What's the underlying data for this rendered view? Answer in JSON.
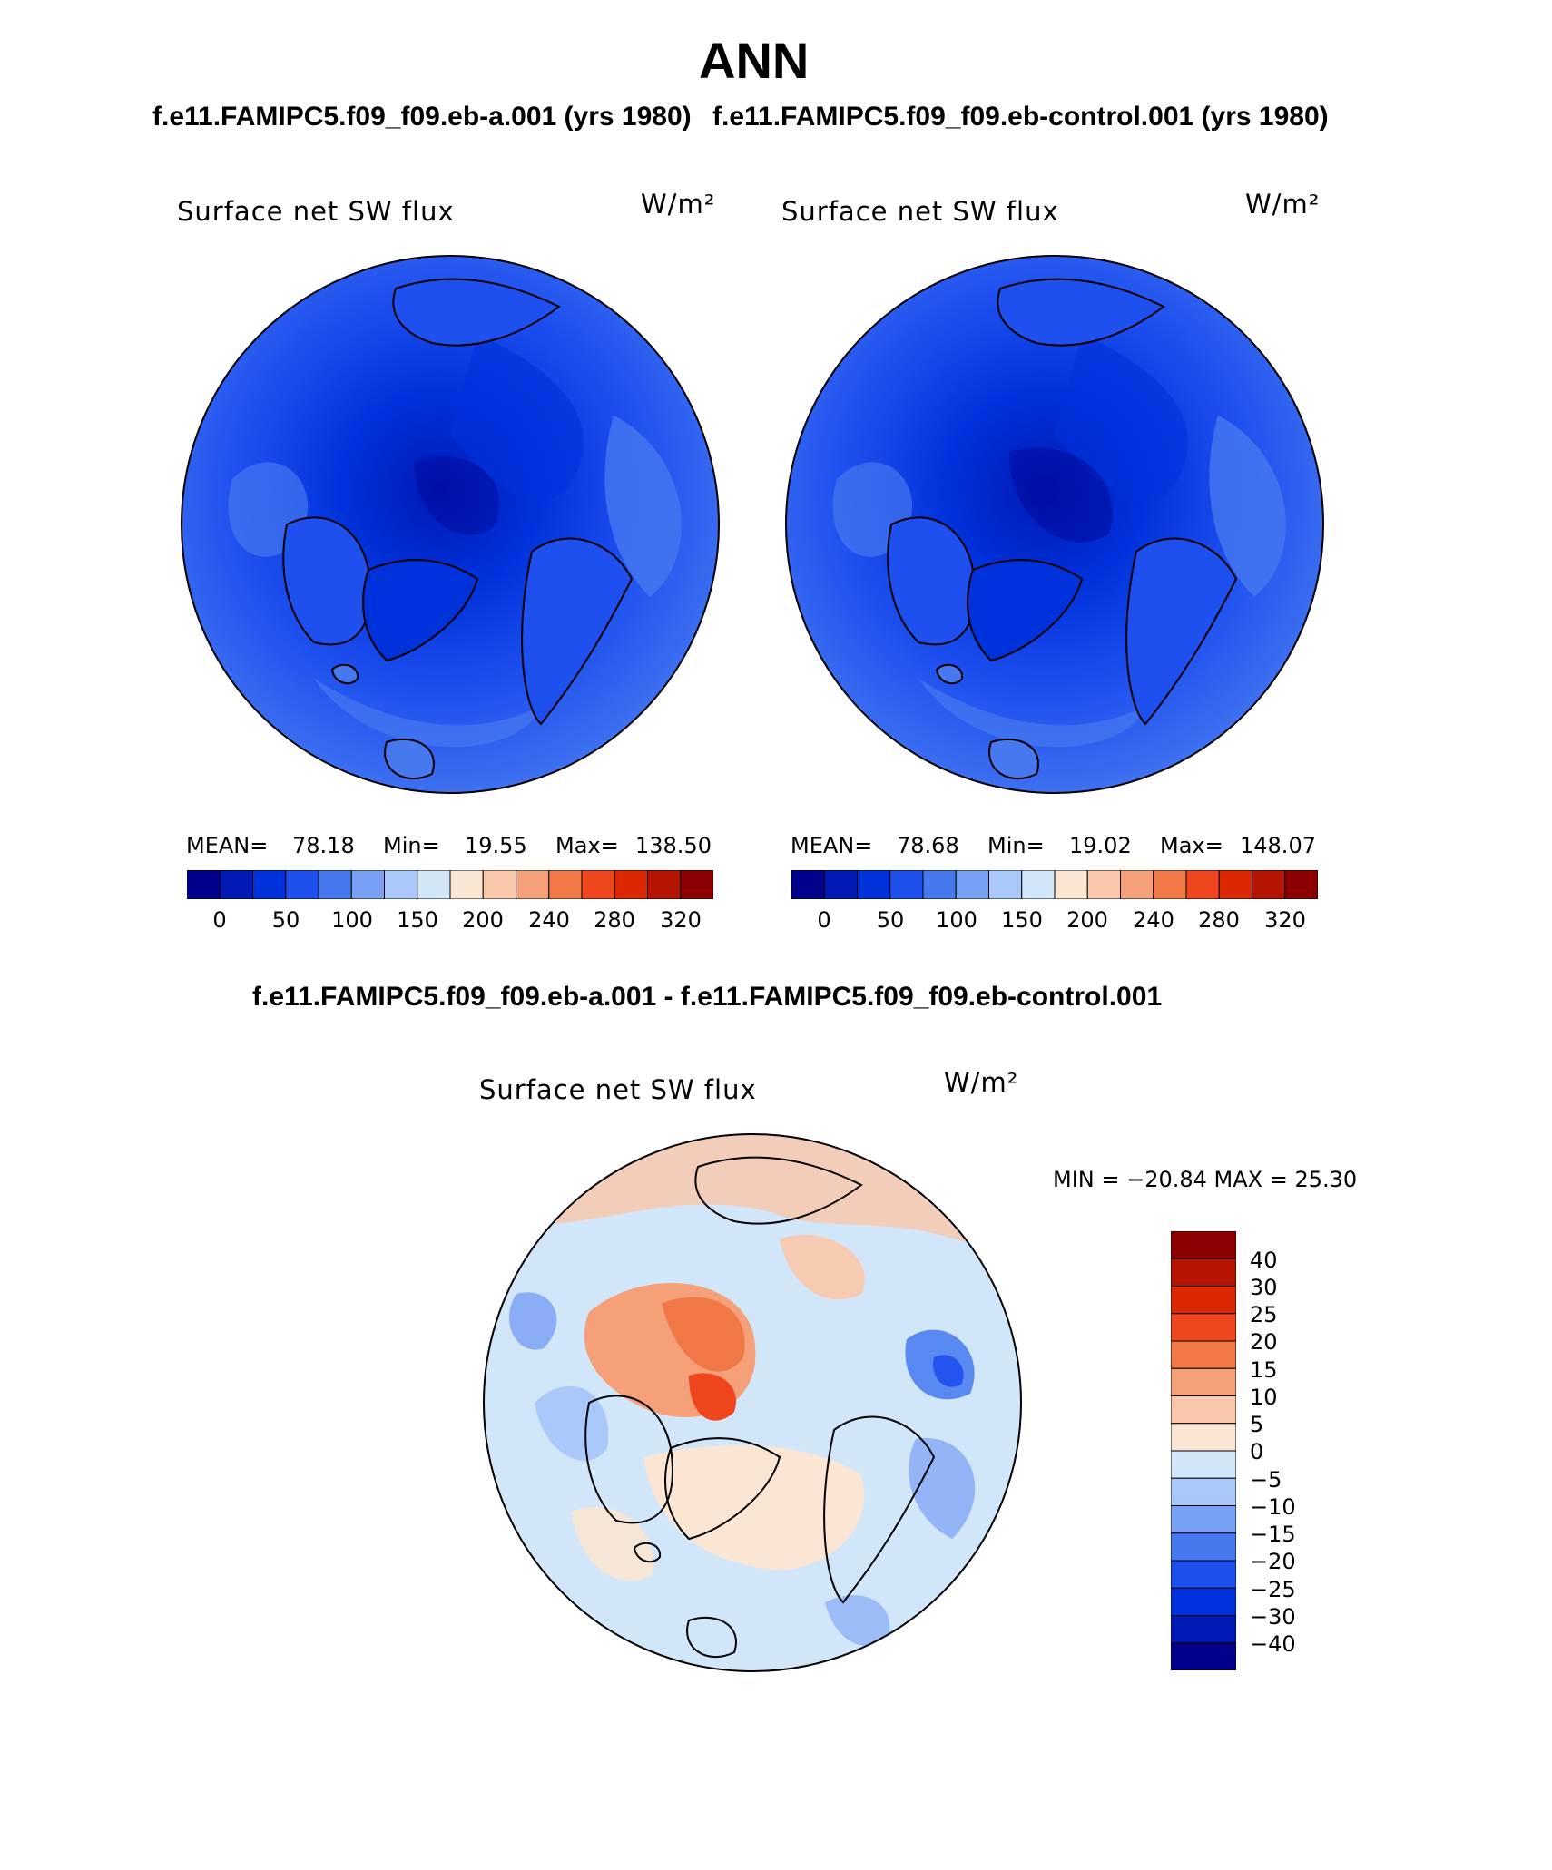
{
  "page": {
    "title": "ANN"
  },
  "panels": [
    {
      "case_title": "f.e11.FAMIPC5.f09_f09.eb-a.001 (yrs 1980)",
      "variable_label": "Surface net SW flux",
      "units_label": "W/m²",
      "stats": {
        "mean_label": "MEAN=",
        "mean_value": "78.18",
        "min_label": "Min=",
        "min_value": "19.55",
        "max_label": "Max=",
        "max_value": "138.50"
      },
      "colorbar_ticks": [
        "0",
        "50",
        "100",
        "150",
        "200",
        "240",
        "280",
        "320"
      ]
    },
    {
      "case_title": "f.e11.FAMIPC5.f09_f09.eb-control.001 (yrs 1980)",
      "variable_label": "Surface net SW flux",
      "units_label": "W/m²",
      "stats": {
        "mean_label": "MEAN=",
        "mean_value": "78.68",
        "min_label": "Min=",
        "min_value": "19.02",
        "max_label": "Max=",
        "max_value": "148.07"
      },
      "colorbar_ticks": [
        "0",
        "50",
        "100",
        "150",
        "200",
        "240",
        "280",
        "320"
      ]
    }
  ],
  "difference": {
    "title": "f.e11.FAMIPC5.f09_f09.eb-a.001 - f.e11.FAMIPC5.f09_f09.eb-control.001",
    "variable_label": "Surface net SW flux",
    "units_label": "W/m²",
    "min_max_label": "MIN = −20.84  MAX =  25.30",
    "colorbar_ticks": [
      "40",
      "30",
      "25",
      "20",
      "15",
      "10",
      "5",
      "0",
      "−5",
      "−10",
      "−15",
      "−20",
      "−25",
      "−30",
      "−40"
    ]
  },
  "colors": {
    "abs_colorbar": [
      "#00008c",
      "#0019b4",
      "#0032dc",
      "#1e50f0",
      "#4678f0",
      "#78a0f5",
      "#aac8fa",
      "#d2e6fa",
      "#fae6d2",
      "#fac8aa",
      "#f5a078",
      "#f07846",
      "#f0461e",
      "#dc2800",
      "#b41400",
      "#8c0000"
    ],
    "diff_colorbar": [
      "#8c0000",
      "#b41400",
      "#dc2800",
      "#f0461e",
      "#f07846",
      "#f5a078",
      "#fac8aa",
      "#fae6d2",
      "#d2e6fa",
      "#aac8fa",
      "#78a0f5",
      "#4678f0",
      "#1e50f0",
      "#0032dc",
      "#0019b4",
      "#00008c"
    ],
    "coastline": "#000000"
  }
}
